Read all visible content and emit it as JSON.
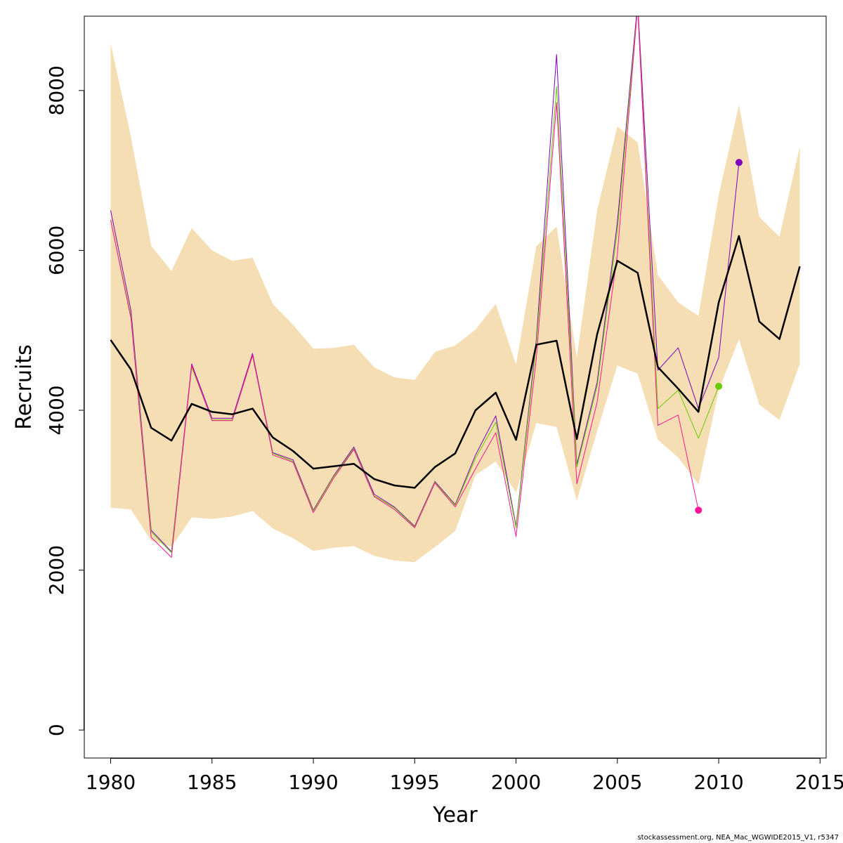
{
  "chart_data": {
    "type": "line",
    "xlabel": "Year",
    "ylabel": "Recruits",
    "xlim": [
      1978.7,
      2015.3
    ],
    "ylim": [
      -350,
      8930
    ],
    "x_ticks": [
      1980,
      1985,
      1990,
      1995,
      2000,
      2005,
      2010,
      2015
    ],
    "y_ticks": [
      0,
      2000,
      4000,
      6000,
      8000
    ],
    "x_tick_labels": [
      "1980",
      "1985",
      "1990",
      "1995",
      "2000",
      "2005",
      "2010",
      "2015"
    ],
    "y_tick_labels": [
      "0",
      "2000",
      "4000",
      "6000",
      "8000"
    ],
    "grid": false,
    "years": [
      1980,
      1981,
      1982,
      1983,
      1984,
      1985,
      1986,
      1987,
      1988,
      1989,
      1990,
      1991,
      1992,
      1993,
      1994,
      1995,
      1996,
      1997,
      1998,
      1999,
      2000,
      2001,
      2002,
      2003,
      2004,
      2005,
      2006,
      2007,
      2008,
      2009,
      2010,
      2011,
      2012,
      2013,
      2014
    ],
    "band": {
      "color": "#f5deb3",
      "upper": [
        8590,
        7420,
        6060,
        5740,
        6280,
        6000,
        5870,
        5910,
        5330,
        5070,
        4770,
        4780,
        4820,
        4540,
        4410,
        4380,
        4730,
        4810,
        5010,
        5330,
        4570,
        6050,
        6300,
        4660,
        6500,
        7550,
        7350,
        5690,
        5350,
        5180,
        6690,
        7820,
        6420,
        6170,
        7300
      ],
      "lower": [
        2780,
        2760,
        2370,
        2290,
        2660,
        2640,
        2670,
        2740,
        2520,
        2400,
        2240,
        2280,
        2300,
        2180,
        2120,
        2100,
        2290,
        2490,
        3190,
        3360,
        2970,
        3840,
        3790,
        2870,
        3740,
        4560,
        4460,
        3630,
        3410,
        3070,
        4250,
        4890,
        4070,
        3880,
        4580
      ]
    },
    "main_series": {
      "color": "#000000",
      "values": [
        4880,
        4510,
        3780,
        3620,
        4080,
        3980,
        3950,
        4020,
        3660,
        3490,
        3270,
        3300,
        3330,
        3140,
        3060,
        3030,
        3290,
        3460,
        4000,
        4220,
        3630,
        4820,
        4870,
        3640,
        4950,
        5870,
        5720,
        4540,
        4270,
        3980,
        5350,
        6180,
        5110,
        4890,
        5800
      ]
    },
    "retro_series": [
      {
        "color": "#7f00bf",
        "values": [
          6500,
          5250,
          2500,
          2230,
          4580,
          3900,
          3900,
          4710,
          3470,
          3380,
          2750,
          3180,
          3540,
          2950,
          2790,
          2550,
          3110,
          2820,
          3440,
          3930,
          2550,
          4880,
          8450,
          3320,
          4350,
          6350,
          9100,
          4500,
          4780,
          4020,
          4660,
          7100
        ]
      },
      {
        "color": "#66cc00",
        "values": [
          6380,
          5180,
          2480,
          2220,
          4540,
          3880,
          3880,
          4680,
          3460,
          3360,
          2740,
          3170,
          3520,
          2930,
          2780,
          2540,
          3100,
          2810,
          3400,
          3850,
          2530,
          4820,
          8050,
          3290,
          4300,
          6250,
          9050,
          4020,
          4250,
          3650,
          4300
        ]
      },
      {
        "color": "#ff1493",
        "values": [
          6380,
          5150,
          2410,
          2160,
          4560,
          3870,
          3870,
          4690,
          3440,
          3350,
          2720,
          3150,
          3510,
          2920,
          2760,
          2530,
          3090,
          2790,
          3270,
          3720,
          2420,
          4650,
          7850,
          3080,
          4100,
          5950,
          9050,
          3810,
          3940,
          2750
        ]
      }
    ],
    "end_points": [
      {
        "year": 2011,
        "value": 7100,
        "color": "#7f00bf"
      },
      {
        "year": 2010,
        "value": 4300,
        "color": "#66cc00"
      },
      {
        "year": 2009,
        "value": 2750,
        "color": "#ff1493"
      }
    ]
  },
  "credit_text": "stockassessment.org, NEA_Mac_WGWIDE2015_V1, r5347"
}
